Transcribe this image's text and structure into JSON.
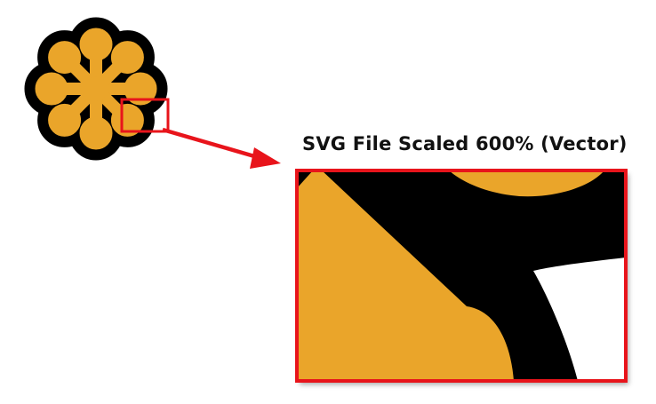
{
  "caption": "SVG File Scaled 600% (Vector)",
  "colors": {
    "icon_fill": "#EAA52A",
    "icon_outline": "#000000",
    "highlight": "#E8141B",
    "background": "#FFFFFF"
  },
  "icons": {
    "source": "asterisk-flower-icon",
    "zoom": "zoomed-detail-icon",
    "arrow": "pointer-arrow-icon"
  },
  "zoom_factor_percent": 600
}
